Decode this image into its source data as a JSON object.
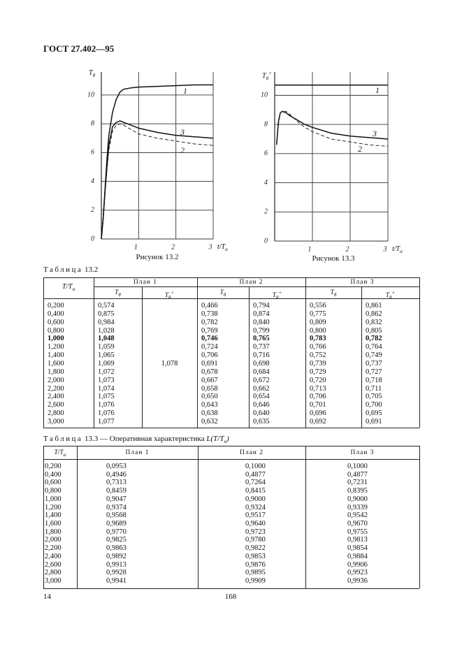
{
  "header": "ГОСТ 27.402—95",
  "figures": [
    {
      "caption": "Рисунок 13.2",
      "y_label": {
        "base": "T",
        "sub": "θ"
      },
      "x_label": {
        "base": "t/T",
        "sub": "α"
      },
      "xlim": [
        0,
        3
      ],
      "ylim": [
        0,
        11.6
      ],
      "xticks": [
        1,
        2,
        3
      ],
      "yticks": [
        0,
        2,
        4,
        6,
        8,
        10
      ],
      "x": [
        0,
        0.05,
        0.1,
        0.15,
        0.2,
        0.3,
        0.4,
        0.5,
        0.6,
        0.8,
        1,
        1.5,
        2,
        2.5,
        3
      ],
      "series": [
        {
          "name": "1",
          "dashed": false,
          "values": [
            0,
            1.5,
            3.5,
            5.5,
            7.2,
            8.8,
            9.7,
            10.2,
            10.4,
            10.5,
            10.55,
            10.6,
            10.65,
            10.7,
            10.7
          ]
        },
        {
          "name": "2",
          "dashed": true,
          "values": [
            0,
            1.5,
            3.2,
            4.8,
            6.2,
            7.5,
            7.9,
            8.0,
            7.9,
            7.6,
            7.3,
            7.0,
            6.8,
            6.6,
            6.5
          ]
        },
        {
          "name": "3",
          "dashed": false,
          "values": [
            0,
            1.5,
            3.3,
            5,
            6.5,
            7.8,
            8.1,
            8.2,
            8.1,
            7.9,
            7.7,
            7.4,
            7.2,
            7.1,
            7.0
          ]
        }
      ]
    },
    {
      "caption": "Рисунок 13.3",
      "y_label": {
        "base": "T",
        "sub": "θ",
        "sup": "+"
      },
      "x_label": {
        "base": "t/T",
        "sub": "α"
      },
      "xlim": [
        0,
        3
      ],
      "ylim": [
        0,
        11.6
      ],
      "xticks": [
        1,
        2,
        3
      ],
      "yticks": [
        0,
        2,
        4,
        6,
        8,
        10
      ],
      "x": [
        0,
        0.05,
        0.1,
        0.15,
        0.2,
        0.3,
        0.4,
        0.6,
        0.8,
        1,
        1.5,
        2,
        2.5,
        3
      ],
      "series": [
        {
          "name": "1",
          "dashed": false,
          "values": [
            10.7,
            10.7,
            10.7,
            10.7,
            10.7,
            10.7,
            10.7,
            10.7,
            10.7,
            10.7,
            10.7,
            10.7,
            10.7,
            10.7
          ]
        },
        {
          "name": "2",
          "dashed": true,
          "values": [
            null,
            6.8,
            8.0,
            8.8,
            8.9,
            8.9,
            8.7,
            8.2,
            7.8,
            7.5,
            7.0,
            6.8,
            6.6,
            6.5
          ]
        },
        {
          "name": "3",
          "dashed": false,
          "values": [
            null,
            6.6,
            8.2,
            8.8,
            8.9,
            8.8,
            8.6,
            8.3,
            8.0,
            7.8,
            7.4,
            7.2,
            7.1,
            7.0
          ]
        }
      ]
    }
  ],
  "table_13_2": {
    "label": "Таблица",
    "number": "13.2",
    "first_header": {
      "base": "T/T",
      "sub": "α"
    },
    "plans": [
      "План 1",
      "План 2",
      "План 3"
    ],
    "subheaders": [
      {
        "base": "T",
        "sub": "θ"
      },
      {
        "base": "T",
        "sub": "θ",
        "sup": "+"
      },
      {
        "base": "T",
        "sub": "θ"
      },
      {
        "base": "T",
        "sub": "θ",
        "sup": "+"
      },
      {
        "base": "T",
        "sub": "θ"
      },
      {
        "base": "T",
        "sub": "θ",
        "sup": "+"
      }
    ],
    "plan1_tplus": "1,078",
    "bold_row": 4,
    "rows": [
      [
        "0,200",
        "0,574",
        "0,466",
        "0,794",
        "0,556",
        "0,861"
      ],
      [
        "0,400",
        "0,875",
        "0,738",
        "0,874",
        "0,775",
        "0,862"
      ],
      [
        "0,600",
        "0,984",
        "0,782",
        "0,840",
        "0,809",
        "0,832"
      ],
      [
        "0,800",
        "1,028",
        "0,769",
        "0,799",
        "0,800",
        "0,805"
      ],
      [
        "1,000",
        "1,048",
        "0,746",
        "0,765",
        "0,783",
        "0,782"
      ],
      [
        "1,200",
        "1,059",
        "0,724",
        "0,737",
        "0,766",
        "0,764"
      ],
      [
        "1,400",
        "1,065",
        "0,706",
        "0,716",
        "0,752",
        "0,749"
      ],
      [
        "1,600",
        "1,069",
        "0,691",
        "0,698",
        "0,739",
        "0,737"
      ],
      [
        "1,800",
        "1,072",
        "0,678",
        "0,684",
        "0,729",
        "0,727"
      ],
      [
        "2,000",
        "1,073",
        "0,667",
        "0,672",
        "0,720",
        "0,718"
      ],
      [
        "2,200",
        "1,074",
        "0,658",
        "0,662",
        "0,713",
        "0,711"
      ],
      [
        "2,400",
        "1,075",
        "0,650",
        "0,654",
        "0,706",
        "0,705"
      ],
      [
        "2,600",
        "1,076",
        "0,643",
        "0,646",
        "0,701",
        "0,700"
      ],
      [
        "2,800",
        "1,076",
        "0,638",
        "0,640",
        "0,696",
        "0,695"
      ],
      [
        "3,000",
        "1,077",
        "0,632",
        "0,635",
        "0,692",
        "0,691"
      ]
    ]
  },
  "table_13_3": {
    "label": "Таблица",
    "number": "13.3",
    "title": "— Оперативная характеристика",
    "formula": {
      "base": "L(T/T",
      "sub": "α",
      "end": ")"
    },
    "first_header": {
      "base": "T/T",
      "sub": "α"
    },
    "plans": [
      "План 1",
      "План 2",
      "План 3"
    ],
    "rows": [
      [
        "0,200",
        "0,0953",
        "0,1000",
        "0,1000"
      ],
      [
        "0,400",
        "0,4946",
        "0,4877",
        "0,4877"
      ],
      [
        "0,600",
        "0,7313",
        "0,7264",
        "0,7231"
      ],
      [
        "0,800",
        "0,8459",
        "0,8415",
        "0,8395"
      ],
      [
        "1,000",
        "0,9047",
        "0,9000",
        "0,9000"
      ],
      [
        "1,200",
        "0,9374",
        "0,9324",
        "0,9339"
      ],
      [
        "1,400",
        "0,9568",
        "0,9517",
        "0,9542"
      ],
      [
        "1,600",
        "0,9689",
        "0,9640",
        "0,9670"
      ],
      [
        "1,800",
        "0,9770",
        "0,9723",
        "0,9755"
      ],
      [
        "2,000",
        "0,9825",
        "0,9780",
        "0,9813"
      ],
      [
        "2,200",
        "0,9863",
        "0,9822",
        "0,9854"
      ],
      [
        "2,400",
        "0,9892",
        "0,9853",
        "0,9884"
      ],
      [
        "2,600",
        "0,9913",
        "0,9876",
        "0,9906"
      ],
      [
        "2,800",
        "0,9928",
        "0,9895",
        "0,9923"
      ],
      [
        "3,000",
        "0,9941",
        "0,9909",
        "0,9936"
      ]
    ]
  },
  "footer": {
    "page_left": "14",
    "page_center": "168"
  }
}
